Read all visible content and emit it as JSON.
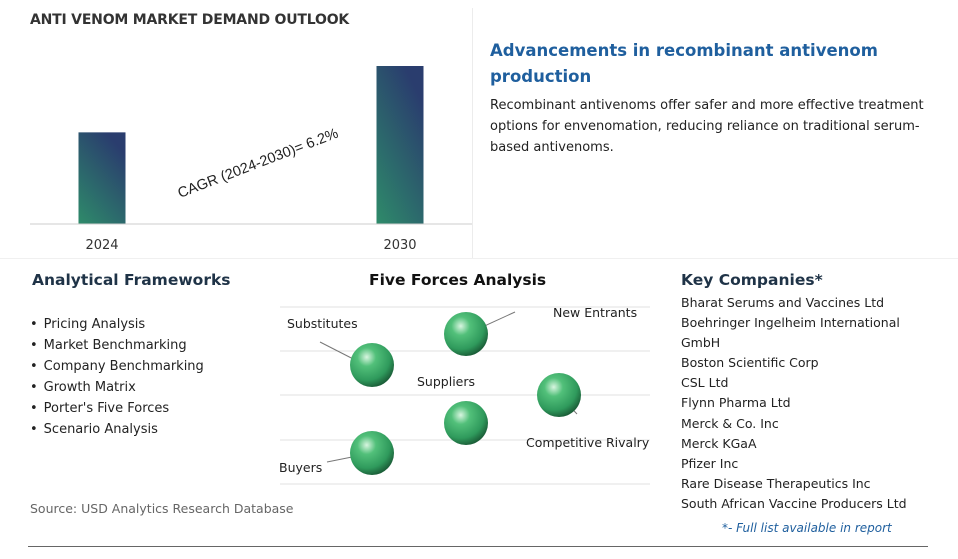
{
  "chart_data": {
    "type": "bar",
    "title": "ANTI VENOM MARKET DEMAND OUTLOOK",
    "categories": [
      "2024",
      "2030"
    ],
    "values": [
      0.58,
      1.0
    ],
    "value_note": "relative bar heights, unscaled",
    "annotation": "CAGR (2024-2030)=  6.2%",
    "grid": false,
    "colors": {
      "bar_bottom": "#2e8b6a",
      "bar_top": "#2a3d6e",
      "axis": "#cccccc"
    }
  },
  "headline": {
    "title": "Advancements in recombinant antivenom production",
    "body": "Recombinant antivenoms offer safer and more effective treatment options for envenomation, reducing reliance on traditional serum-based antivenoms."
  },
  "frameworks": {
    "title": "Analytical Frameworks",
    "items": [
      "Pricing Analysis",
      "Market Benchmarking",
      "Company Benchmarking",
      "Growth Matrix",
      "Porter's Five Forces",
      "Scenario Analysis"
    ]
  },
  "five_forces": {
    "title": "Five Forces Analysis",
    "labels": {
      "substitutes": "Substitutes",
      "new_entrants": "New Entrants",
      "suppliers": "Suppliers",
      "competitive_rivalry": "Competitive Rivalry",
      "buyers": "Buyers"
    },
    "sphere_color": "#2f9a5c"
  },
  "companies": {
    "title": "Key Companies*",
    "items": [
      "Bharat Serums and Vaccines Ltd",
      "Boehringer Ingelheim International GmbH",
      "Boston Scientific Corp",
      "CSL Ltd",
      "Flynn Pharma Ltd",
      "Merck & Co. Inc",
      "Merck KGaA",
      "Pfizer Inc",
      "Rare Disease Therapeutics Inc",
      "South African Vaccine Producers Ltd"
    ],
    "note": "*- Full list available in report"
  },
  "source": "Source: USD Analytics Research Database"
}
